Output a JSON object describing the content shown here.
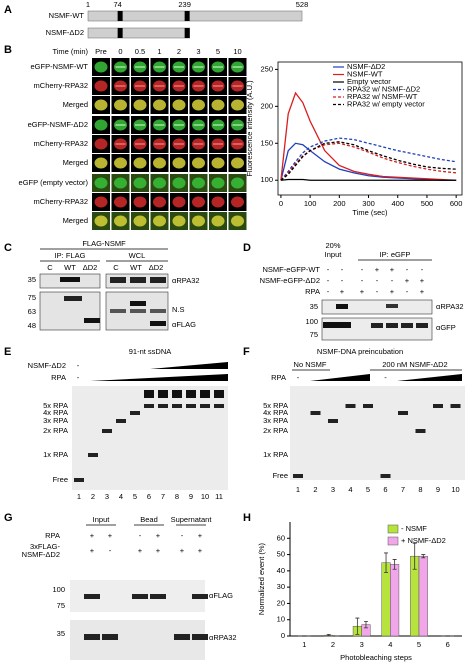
{
  "panel_labels": [
    "A",
    "B",
    "C",
    "D",
    "E",
    "F",
    "G",
    "H"
  ],
  "panel_a": {
    "positions": [
      1,
      74,
      239,
      528
    ],
    "constructs": [
      "NSMF-WT",
      "NSMF-ΔD2"
    ]
  },
  "panel_b": {
    "time_label": "Time (min)",
    "times": [
      "Pre",
      "0",
      "0.5",
      "1",
      "2",
      "3",
      "5",
      "10"
    ],
    "groups": [
      [
        "eGFP-NSMF-WT",
        "mCherry-RPA32",
        "Merged"
      ],
      [
        "eGFP-NSMF-ΔD2",
        "mCherry-RPA32",
        "Merged"
      ],
      [
        "eGFP (empty vector)",
        "mCherry-RPA32",
        "Merged"
      ]
    ]
  },
  "panel_c": {
    "title": "FLAG-NSMF",
    "blots": [
      "IP: FLAG",
      "WCL"
    ],
    "lanes": [
      "C",
      "WT",
      "ΔD2"
    ],
    "mw": [
      "35",
      "75",
      "63",
      "48"
    ],
    "antibodies": [
      "αRPA32",
      "N.S",
      "αFLAG"
    ]
  },
  "panel_d": {
    "input": [
      "20%",
      "Input"
    ],
    "ip": "IP: eGFP",
    "rows": [
      {
        "label": "NSMF-eGFP-WT",
        "signs": [
          "-",
          "-",
          "-",
          "+",
          "+",
          "-",
          "-"
        ]
      },
      {
        "label": "NSMF-eGFP-ΔD2",
        "signs": [
          "-",
          "-",
          "-",
          "-",
          "-",
          "+",
          "+"
        ]
      },
      {
        "label": "RPA",
        "signs": [
          "-",
          "+",
          "+",
          "-",
          "+",
          "-",
          "+"
        ]
      }
    ],
    "mw": [
      "35",
      "100",
      "75"
    ],
    "antibodies": [
      "αRPA32",
      "αGFP"
    ]
  },
  "panel_e": {
    "title": "91-nt ssDNA",
    "rows": [
      {
        "label": "NSMF-ΔD2",
        "sign": "-"
      },
      {
        "label": "RPA",
        "sign": "-"
      }
    ],
    "bands": [
      "5x RPA",
      "4x RPA",
      "3x RPA",
      "2x RPA",
      "1x RPA",
      "Free"
    ],
    "lanes": [
      1,
      2,
      3,
      4,
      5,
      6,
      7,
      8,
      9,
      10,
      11
    ]
  },
  "panel_f": {
    "title": "NSMF-DNA preincubation",
    "groups": [
      "No NSMF",
      "200 nM NSMF-ΔD2"
    ],
    "rpa": {
      "label": "RPA",
      "signs": [
        "-",
        "-"
      ]
    },
    "bands": [
      "5x RPA",
      "4x RPA",
      "3x RPA",
      "2x RPA",
      "1x RPA",
      "Free"
    ],
    "lanes": [
      1,
      2,
      3,
      4,
      5,
      6,
      7,
      8,
      9,
      10
    ]
  },
  "panel_g": {
    "groups": [
      "Input",
      "Bead",
      "Supernatant"
    ],
    "rows": [
      {
        "label_lines": [
          "RPA"
        ],
        "signs": [
          "+",
          "+",
          "-",
          "+",
          "-",
          "+"
        ]
      },
      {
        "label_lines": [
          "3xFLAG-",
          "NSMF-ΔD2"
        ],
        "signs": [
          "+",
          "-",
          "+",
          "+",
          "+",
          "+"
        ]
      }
    ],
    "mw": [
      "100",
      "75",
      "35"
    ],
    "antibodies": [
      "αFLAG",
      "αRPA32"
    ]
  },
  "chart_data": [
    {
      "type": "line",
      "y_label": "Fluorescence intensity (A.U.)",
      "x_label": "Time (sec)",
      "x": [
        0,
        25,
        50,
        75,
        100,
        150,
        200,
        250,
        300,
        350,
        400,
        450,
        500,
        550,
        600
      ],
      "xlim": [
        -10,
        620
      ],
      "xticks": [
        0,
        100,
        200,
        300,
        400,
        500,
        600
      ],
      "ylim": [
        80,
        260
      ],
      "yticks": [
        100,
        150,
        200,
        250
      ],
      "series": [
        {
          "name": "NSMF-ΔD2",
          "color": "#1f3fbf",
          "dashed": false,
          "values": [
            100,
            140,
            150,
            148,
            140,
            125,
            115,
            110,
            106,
            104,
            103,
            102,
            101,
            100,
            100
          ]
        },
        {
          "name": "NSMF-WT",
          "color": "#d81e1e",
          "dashed": false,
          "values": [
            100,
            190,
            218,
            205,
            180,
            140,
            120,
            112,
            108,
            105,
            104,
            103,
            102,
            101,
            100
          ]
        },
        {
          "name": "Empty vector",
          "color": "#000000",
          "dashed": false,
          "values": [
            100,
            101,
            101,
            101,
            100,
            100,
            100,
            100,
            100,
            100,
            100,
            100,
            100,
            100,
            100
          ]
        },
        {
          "name": "RPA32 w/ NSMF-ΔD2",
          "color": "#1f3fbf",
          "dashed": true,
          "values": [
            100,
            112,
            125,
            137,
            145,
            153,
            157,
            155,
            150,
            145,
            140,
            136,
            132,
            128,
            125
          ]
        },
        {
          "name": "RPA32 w/ NSMF-WT",
          "color": "#d81e1e",
          "dashed": true,
          "values": [
            100,
            110,
            122,
            133,
            140,
            148,
            150,
            145,
            138,
            130,
            124,
            119,
            115,
            112,
            110
          ]
        },
        {
          "name": "RPA32 w/ empty vector",
          "color": "#000000",
          "dashed": true,
          "values": [
            100,
            108,
            120,
            132,
            140,
            150,
            152,
            148,
            140,
            133,
            127,
            122,
            118,
            116,
            115
          ]
        }
      ]
    },
    {
      "type": "bar",
      "y_label": "Normalized event (%)",
      "x_label": "Photobleaching steps",
      "categories": [
        "1",
        "2",
        "3",
        "4",
        "5",
        "6"
      ],
      "ylim": [
        0,
        70
      ],
      "yticks": [
        0,
        10,
        20,
        30,
        40,
        50,
        60
      ],
      "series": [
        {
          "name": "- NSMF",
          "color": "#b6e33c",
          "values": [
            0,
            0.5,
            6,
            45,
            49,
            0
          ],
          "errors": [
            0,
            0.5,
            5,
            6,
            8,
            0
          ]
        },
        {
          "name": "+ NSMF-ΔD2",
          "color": "#f2a6ea",
          "values": [
            0,
            0,
            7,
            44,
            49,
            0
          ],
          "errors": [
            0,
            0,
            2,
            3,
            1,
            0
          ]
        }
      ]
    }
  ]
}
